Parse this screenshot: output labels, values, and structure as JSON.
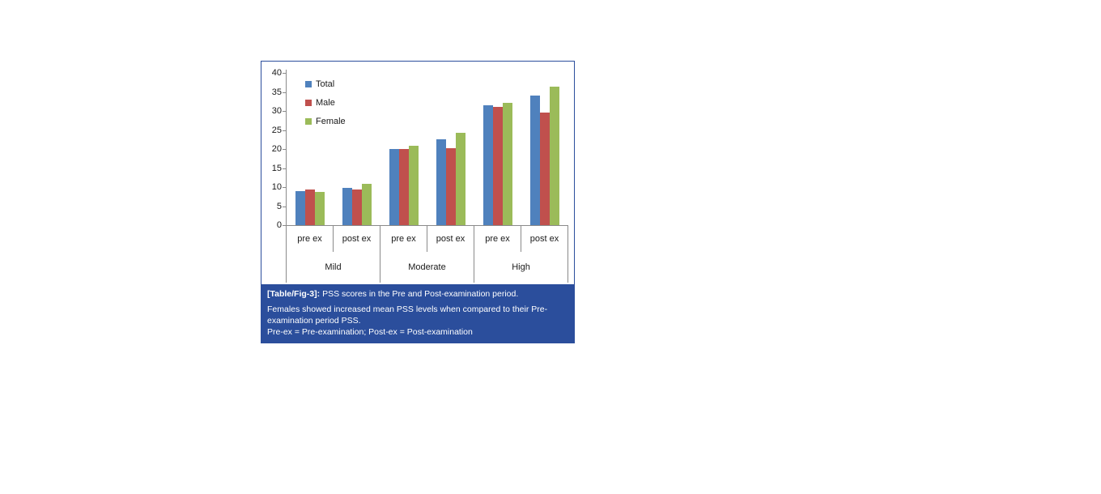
{
  "figure": {
    "caption": {
      "tag": "[Table/Fig-3]:",
      "title": "PSS scores in the Pre and Post-examination period.",
      "body": "Females showed increased mean PSS levels when compared to their Pre-examination period PSS.",
      "note": "Pre-ex = Pre-examination; Post-ex = Post-examination",
      "background": "#2B4E9C",
      "text_color": "#FFFFFF"
    }
  },
  "chart_data": {
    "type": "bar",
    "title": "",
    "xlabel": "",
    "ylabel": "",
    "groups": [
      "Mild",
      "Moderate",
      "High"
    ],
    "categories": [
      "pre ex",
      "post ex",
      "pre ex",
      "post ex",
      "pre ex",
      "post ex"
    ],
    "series": [
      {
        "name": "Total",
        "color": "#4F81BD",
        "values": [
          9.0,
          9.8,
          20.0,
          22.6,
          31.4,
          34.0
        ]
      },
      {
        "name": "Male",
        "color": "#C0504D",
        "values": [
          9.3,
          9.4,
          20.0,
          20.3,
          31.1,
          29.6
        ]
      },
      {
        "name": "Female",
        "color": "#9BBB59",
        "values": [
          8.8,
          10.8,
          20.9,
          24.3,
          32.1,
          36.4
        ]
      }
    ],
    "ylim": [
      0,
      40
    ],
    "yticks": [
      0,
      5,
      10,
      15,
      20,
      25,
      30,
      35,
      40
    ],
    "legend_position": "top-left",
    "grid": false,
    "axis_line_color": "#8a8a8a"
  }
}
